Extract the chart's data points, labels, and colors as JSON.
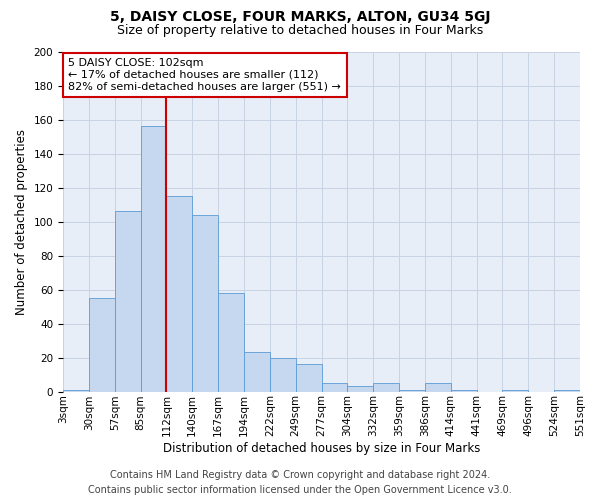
{
  "title": "5, DAISY CLOSE, FOUR MARKS, ALTON, GU34 5GJ",
  "subtitle": "Size of property relative to detached houses in Four Marks",
  "xlabel": "Distribution of detached houses by size in Four Marks",
  "ylabel": "Number of detached properties",
  "bin_labels": [
    "3sqm",
    "30sqm",
    "57sqm",
    "85sqm",
    "112sqm",
    "140sqm",
    "167sqm",
    "194sqm",
    "222sqm",
    "249sqm",
    "277sqm",
    "304sqm",
    "332sqm",
    "359sqm",
    "386sqm",
    "414sqm",
    "441sqm",
    "469sqm",
    "496sqm",
    "524sqm",
    "551sqm"
  ],
  "bar_heights": [
    1,
    55,
    106,
    156,
    115,
    104,
    58,
    23,
    20,
    16,
    5,
    3,
    5,
    1,
    5,
    1,
    0,
    1,
    0,
    1
  ],
  "bar_color": "#c5d8f0",
  "bar_edgecolor": "#5b9bd5",
  "vline_x": 4,
  "vline_color": "#cc0000",
  "ylim": [
    0,
    200
  ],
  "yticks": [
    0,
    20,
    40,
    60,
    80,
    100,
    120,
    140,
    160,
    180,
    200
  ],
  "annotation_text": "5 DAISY CLOSE: 102sqm\n← 17% of detached houses are smaller (112)\n82% of semi-detached houses are larger (551) →",
  "annotation_box_color": "#ffffff",
  "annotation_box_edgecolor": "#cc0000",
  "footer_line1": "Contains HM Land Registry data © Crown copyright and database right 2024.",
  "footer_line2": "Contains public sector information licensed under the Open Government Licence v3.0.",
  "background_color": "#ffffff",
  "plot_bg_color": "#e8eef7",
  "grid_color": "#c8d4e4",
  "title_fontsize": 10,
  "subtitle_fontsize": 9,
  "axis_label_fontsize": 8.5,
  "tick_fontsize": 7.5,
  "annotation_fontsize": 8,
  "footer_fontsize": 7
}
